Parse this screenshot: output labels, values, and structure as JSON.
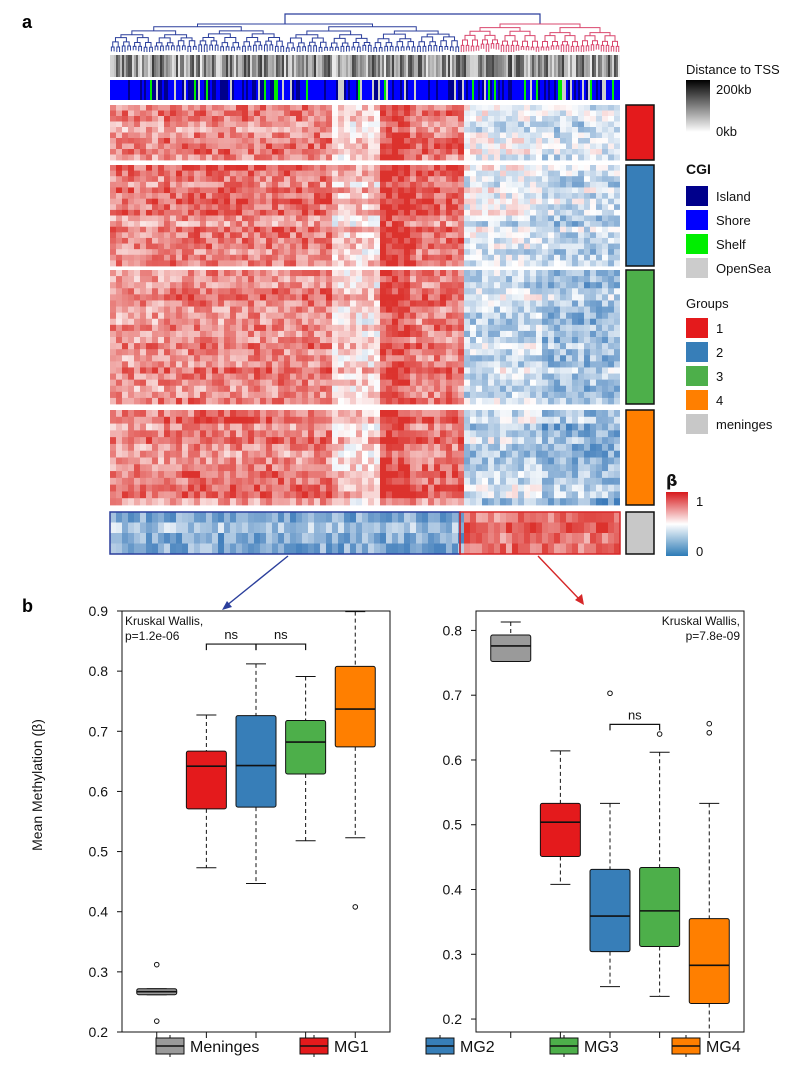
{
  "panel_a": {
    "label": "a",
    "legends": {
      "distance": {
        "title": "Distance to TSS",
        "max_label": "200kb",
        "min_label": "0kb"
      },
      "cgi": {
        "title": "CGI",
        "items": [
          {
            "label": "Island",
            "color": "#00008b"
          },
          {
            "label": "Shore",
            "color": "#0000ff"
          },
          {
            "label": "Shelf",
            "color": "#00ee00"
          },
          {
            "label": "OpenSea",
            "color": "#cccccc"
          }
        ]
      },
      "groups": {
        "title": "Groups",
        "items": [
          {
            "label": "1",
            "color": "#e41a1c"
          },
          {
            "label": "2",
            "color": "#377eb8"
          },
          {
            "label": "3",
            "color": "#4daf4a"
          },
          {
            "label": "4",
            "color": "#ff7f00"
          },
          {
            "label": "meninges",
            "color": "#c8c8c8"
          }
        ]
      },
      "beta": {
        "title": "β",
        "max_label": "1",
        "min_label": "0"
      }
    },
    "heatmap_groups": [
      {
        "name": "1",
        "color": "#e41a1c",
        "rows": 10
      },
      {
        "name": "2",
        "color": "#377eb8",
        "rows": 18
      },
      {
        "name": "3",
        "color": "#4daf4a",
        "rows": 22
      },
      {
        "name": "4",
        "color": "#ff7f00",
        "rows": 14
      },
      {
        "name": "meninges",
        "color": "#c8c8c8",
        "rows": 4
      }
    ]
  },
  "panel_b": {
    "label": "b"
  },
  "chart_data": [
    {
      "type": "box",
      "title": "",
      "ylabel": "Mean Methylation (β)",
      "ylim": [
        0.2,
        0.9
      ],
      "yticks": [
        "0.2",
        "0.3",
        "0.4",
        "0.5",
        "0.6",
        "0.7",
        "0.8",
        "0.9"
      ],
      "annotation": [
        "Kruskal Wallis,",
        "p=1.2e-06"
      ],
      "comparisons": [
        {
          "from": "MG1",
          "to": "MG2",
          "label": "ns",
          "y": 0.845
        },
        {
          "from": "MG2",
          "to": "MG3",
          "label": "ns",
          "y": 0.845
        }
      ],
      "boxes": [
        {
          "name": "Meninges",
          "color": "#9a9a9a",
          "whislo": 0.262,
          "q1": 0.262,
          "med": 0.267,
          "q3": 0.272,
          "whishi": 0.272,
          "fliers": [
            0.312,
            0.218
          ]
        },
        {
          "name": "MG1",
          "color": "#e41a1c",
          "whislo": 0.473,
          "q1": 0.571,
          "med": 0.642,
          "q3": 0.667,
          "whishi": 0.727,
          "fliers": []
        },
        {
          "name": "MG2",
          "color": "#377eb8",
          "whislo": 0.447,
          "q1": 0.574,
          "med": 0.643,
          "q3": 0.726,
          "whishi": 0.812,
          "fliers": []
        },
        {
          "name": "MG3",
          "color": "#4daf4a",
          "whislo": 0.518,
          "q1": 0.629,
          "med": 0.682,
          "q3": 0.718,
          "whishi": 0.791,
          "fliers": []
        },
        {
          "name": "MG4",
          "color": "#ff7f00",
          "whislo": 0.523,
          "q1": 0.674,
          "med": 0.737,
          "q3": 0.808,
          "whishi": 0.899,
          "fliers": [
            0.408
          ]
        }
      ]
    },
    {
      "type": "box",
      "title": "",
      "ylabel": "",
      "ylim": [
        0.18,
        0.83
      ],
      "yticks": [
        "0.2",
        "0.3",
        "0.4",
        "0.5",
        "0.6",
        "0.7",
        "0.8"
      ],
      "annotation": [
        "Kruskal Wallis,",
        "p=7.8e-09"
      ],
      "comparisons": [
        {
          "from": "MG2",
          "to": "MG3",
          "label": "ns",
          "y": 0.655
        }
      ],
      "boxes": [
        {
          "name": "Meninges",
          "color": "#9a9a9a",
          "whislo": 0.752,
          "q1": 0.752,
          "med": 0.776,
          "q3": 0.793,
          "whishi": 0.813,
          "fliers": []
        },
        {
          "name": "MG1",
          "color": "#e41a1c",
          "whislo": 0.408,
          "q1": 0.451,
          "med": 0.504,
          "q3": 0.533,
          "whishi": 0.614,
          "fliers": []
        },
        {
          "name": "MG2",
          "color": "#377eb8",
          "whislo": 0.25,
          "q1": 0.304,
          "med": 0.359,
          "q3": 0.431,
          "whishi": 0.533,
          "fliers": [
            0.703
          ]
        },
        {
          "name": "MG3",
          "color": "#4daf4a",
          "whislo": 0.235,
          "q1": 0.312,
          "med": 0.367,
          "q3": 0.434,
          "whishi": 0.612,
          "fliers": [
            0.64
          ]
        },
        {
          "name": "MG4",
          "color": "#ff7f00",
          "whislo": 0.18,
          "q1": 0.224,
          "med": 0.283,
          "q3": 0.355,
          "whishi": 0.533,
          "fliers": [
            0.656,
            0.642
          ]
        }
      ]
    }
  ],
  "bottom_legend": [
    {
      "label": "Meninges",
      "color": "#9a9a9a"
    },
    {
      "label": "MG1",
      "color": "#e41a1c"
    },
    {
      "label": "MG2",
      "color": "#377eb8"
    },
    {
      "label": "MG3",
      "color": "#4daf4a"
    },
    {
      "label": "MG4",
      "color": "#ff7f00"
    }
  ]
}
